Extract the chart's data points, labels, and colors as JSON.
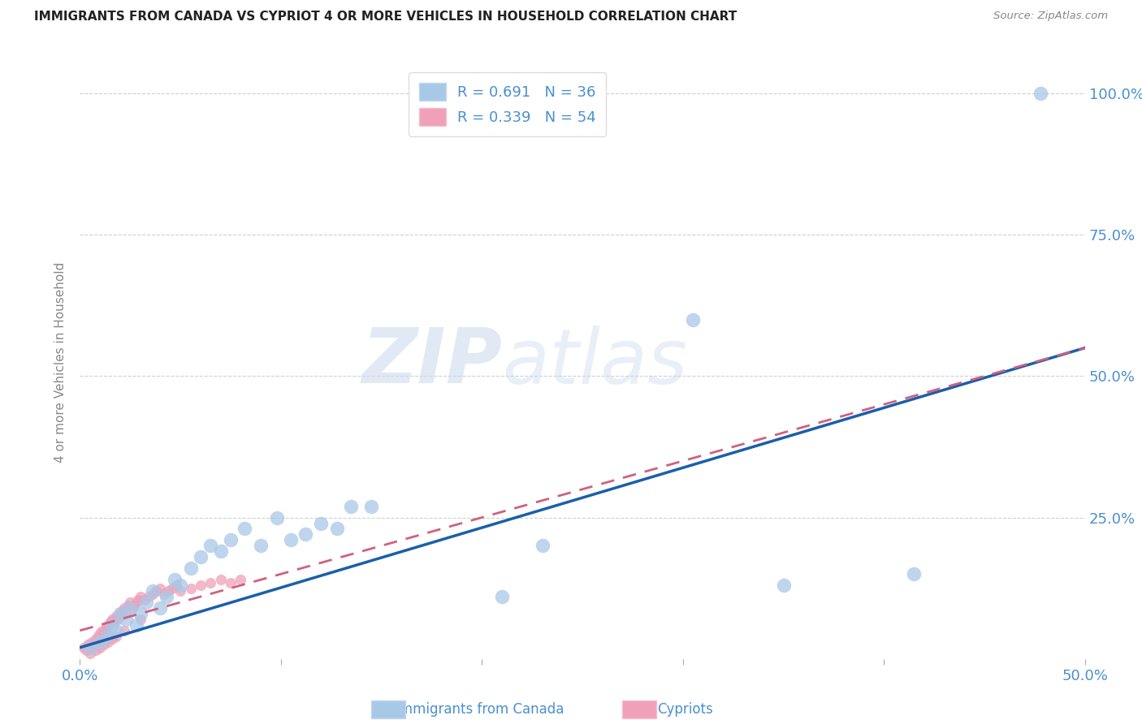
{
  "title": "IMMIGRANTS FROM CANADA VS CYPRIOT 4 OR MORE VEHICLES IN HOUSEHOLD CORRELATION CHART",
  "source": "Source: ZipAtlas.com",
  "ylabel": "4 or more Vehicles in Household",
  "watermark_zip": "ZIP",
  "watermark_atlas": "atlas",
  "legend_1_label": "Immigrants from Canada",
  "legend_2_label": "Cypriots",
  "r1": 0.691,
  "n1": 36,
  "r2": 0.339,
  "n2": 54,
  "color_blue": "#a8c8e8",
  "color_pink": "#f0a0b8",
  "line_blue": "#1a5faa",
  "line_pink": "#d06080",
  "axis_color": "#4a90d0",
  "xlim": [
    0.0,
    0.5
  ],
  "ylim": [
    0.0,
    1.05
  ],
  "xticks": [
    0.0,
    0.1,
    0.2,
    0.3,
    0.4,
    0.5
  ],
  "yticks": [
    0.25,
    0.5,
    0.75,
    1.0
  ],
  "ytick_labels": [
    "25.0%",
    "50.0%",
    "75.0%",
    "100.0%"
  ],
  "xtick_labels": [
    "0.0%",
    "",
    "",
    "",
    "",
    "50.0%"
  ],
  "blue_x": [
    0.005,
    0.01,
    0.013,
    0.016,
    0.018,
    0.02,
    0.023,
    0.025,
    0.028,
    0.03,
    0.033,
    0.036,
    0.04,
    0.043,
    0.047,
    0.05,
    0.055,
    0.06,
    0.065,
    0.07,
    0.075,
    0.082,
    0.09,
    0.098,
    0.105,
    0.112,
    0.12,
    0.128,
    0.135,
    0.145,
    0.21,
    0.23,
    0.305,
    0.35,
    0.415,
    0.478
  ],
  "blue_y": [
    0.02,
    0.03,
    0.04,
    0.06,
    0.05,
    0.08,
    0.07,
    0.09,
    0.06,
    0.08,
    0.1,
    0.12,
    0.09,
    0.11,
    0.14,
    0.13,
    0.16,
    0.18,
    0.2,
    0.19,
    0.21,
    0.23,
    0.2,
    0.25,
    0.21,
    0.22,
    0.24,
    0.23,
    0.27,
    0.27,
    0.11,
    0.2,
    0.6,
    0.13,
    0.15,
    1.0
  ],
  "pink_x": [
    0.002,
    0.003,
    0.004,
    0.005,
    0.006,
    0.007,
    0.008,
    0.009,
    0.01,
    0.011,
    0.012,
    0.013,
    0.014,
    0.015,
    0.016,
    0.017,
    0.018,
    0.019,
    0.02,
    0.021,
    0.022,
    0.023,
    0.024,
    0.025,
    0.026,
    0.027,
    0.028,
    0.029,
    0.03,
    0.032,
    0.034,
    0.036,
    0.038,
    0.04,
    0.042,
    0.044,
    0.046,
    0.048,
    0.05,
    0.055,
    0.06,
    0.065,
    0.07,
    0.075,
    0.08,
    0.005,
    0.008,
    0.01,
    0.012,
    0.014,
    0.016,
    0.018,
    0.022,
    0.03
  ],
  "pink_y": [
    0.02,
    0.015,
    0.025,
    0.02,
    0.03,
    0.025,
    0.035,
    0.04,
    0.045,
    0.05,
    0.045,
    0.055,
    0.06,
    0.065,
    0.07,
    0.065,
    0.075,
    0.07,
    0.08,
    0.085,
    0.09,
    0.085,
    0.095,
    0.1,
    0.09,
    0.095,
    0.1,
    0.105,
    0.11,
    0.105,
    0.11,
    0.115,
    0.12,
    0.125,
    0.115,
    0.12,
    0.125,
    0.13,
    0.12,
    0.125,
    0.13,
    0.135,
    0.14,
    0.135,
    0.14,
    0.01,
    0.015,
    0.02,
    0.025,
    0.03,
    0.035,
    0.04,
    0.05,
    0.07
  ],
  "blue_line_x": [
    0.0,
    0.5
  ],
  "blue_line_y": [
    0.02,
    0.55
  ],
  "pink_line_x": [
    0.0,
    0.5
  ],
  "pink_line_y": [
    0.05,
    0.55
  ]
}
